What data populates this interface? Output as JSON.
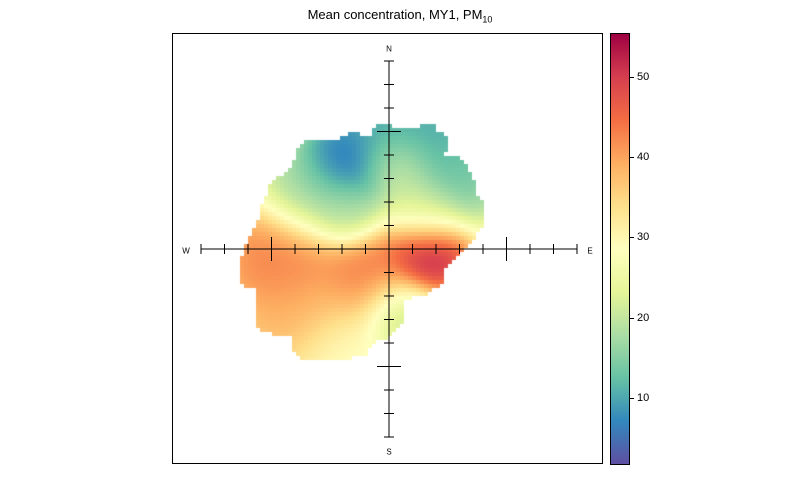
{
  "chart_data": {
    "type": "heatmap",
    "subtype": "polar-plot",
    "title": "Mean concentration, MY1, PM",
    "title_subscript": "10",
    "compass": {
      "north": "N",
      "east": "E",
      "south": "S",
      "west": "W"
    },
    "colorbar": {
      "range": [
        1.6,
        55.5
      ],
      "ticks": [
        10,
        20,
        30,
        40,
        50
      ],
      "tick_labels": [
        "10",
        "20",
        "30",
        "40",
        "50"
      ],
      "palette": [
        "#5E4FA2",
        "#3288BD",
        "#66C2A5",
        "#ABDDA4",
        "#E6F598",
        "#FFFFBF",
        "#FEE08B",
        "#FDAE61",
        "#F46D43",
        "#D53E4F",
        "#9E0142"
      ]
    },
    "max_region": "east, near centre (~55)",
    "min_region": "north-northwest (~2)"
  }
}
